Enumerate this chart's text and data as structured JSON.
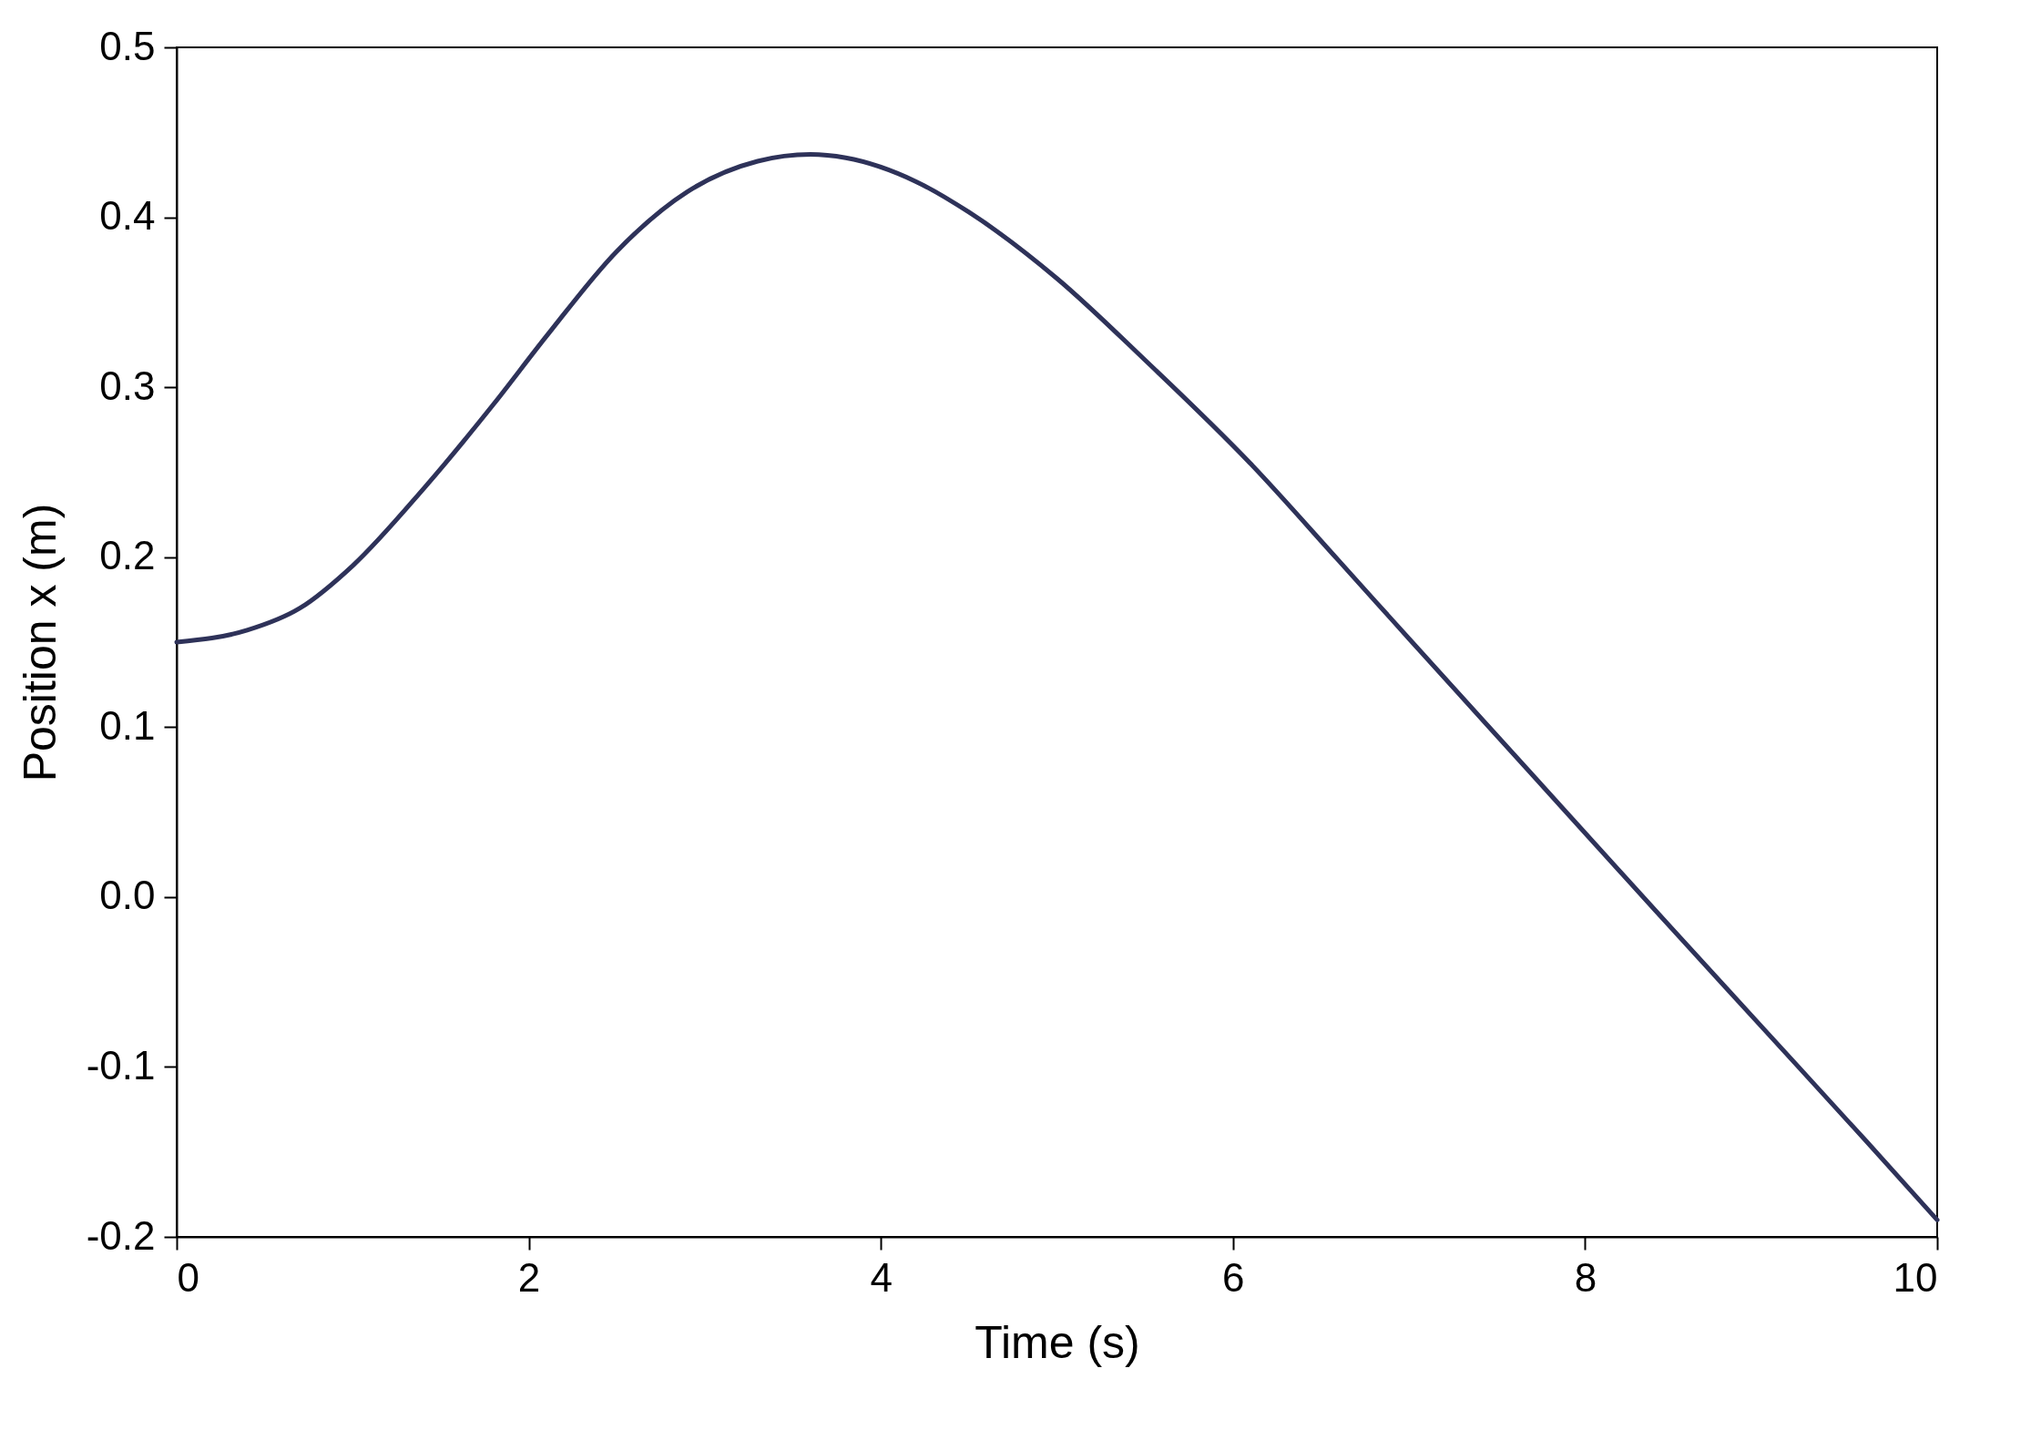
{
  "chart_data": {
    "type": "line",
    "xlabel": "Time (s)",
    "ylabel": "Position x (m)",
    "x": [
      0,
      0.4,
      0.7,
      1.0,
      1.4,
      1.8,
      2.1,
      2.5,
      2.9,
      3.3,
      3.6,
      3.8,
      4.2,
      4.5,
      5.0,
      5.5,
      6.1,
      6.6,
      7.0,
      7.7,
      8.4,
      9.0,
      9.6,
      10
    ],
    "series": [
      {
        "color": "#2e3259",
        "values": [
          0.15,
          0.157,
          0.17,
          0.195,
          0.24,
          0.29,
          0.33,
          0.38,
          0.415,
          0.433,
          0.437,
          0.435,
          0.421,
          0.403,
          0.364,
          0.316,
          0.255,
          0.198,
          0.152,
          0.072,
          -0.008,
          -0.076,
          -0.144,
          -0.19
        ]
      }
    ],
    "xlim": [
      0,
      10
    ],
    "ylim": [
      -0.2,
      0.5
    ],
    "xticks": [
      0,
      2,
      4,
      6,
      8,
      10
    ],
    "yticks": [
      -0.2,
      -0.1,
      {
        "value": 0,
        "label": "0.0"
      },
      0.1,
      0.2,
      0.3,
      0.4,
      0.5
    ]
  }
}
